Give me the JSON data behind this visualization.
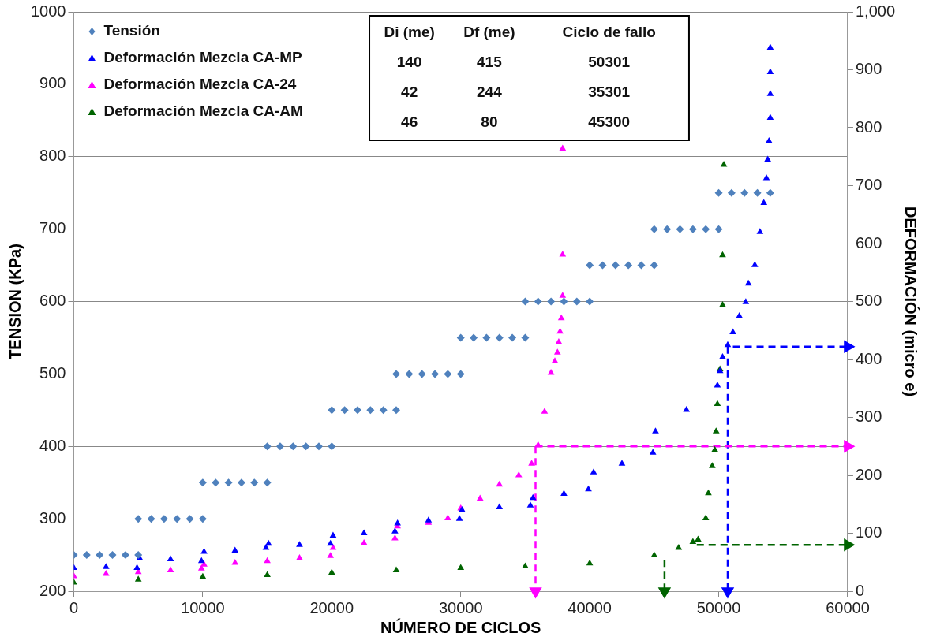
{
  "chart_data": {
    "type": "scatter",
    "xlabel": "NÚMERO DE CICLOS",
    "ylabel": "TENSION (KPa)",
    "y2label": "DEFORMACIÓN (micro e)",
    "xlim": [
      0,
      60000
    ],
    "xticks": [
      0,
      10000,
      20000,
      30000,
      40000,
      50000,
      60000
    ],
    "ylim": [
      200,
      1000
    ],
    "yticks": [
      200,
      300,
      400,
      500,
      600,
      700,
      800,
      900,
      1000
    ],
    "y2lim": [
      0,
      1000
    ],
    "y2ticks": [
      0,
      100,
      200,
      300,
      400,
      500,
      600,
      700,
      800,
      900,
      {
        "value": 1000,
        "label": "1,000"
      }
    ],
    "grid": "y",
    "legend": "top left",
    "annotations": [
      "Di (me)",
      "Df (me)",
      "Ciclo de fallo",
      "140",
      "415",
      "50301",
      "42",
      "244",
      "35301",
      "46",
      "80",
      "45300"
    ],
    "series": [
      {
        "name": "Tensión",
        "marker": "diamond",
        "color": "#4f81bd",
        "x": [
          0,
          1000,
          2000,
          3000,
          4000,
          5000,
          5000,
          6000,
          7000,
          8000,
          9000,
          10000,
          10000,
          11000,
          12000,
          13000,
          14000,
          15000,
          15000,
          16000,
          17000,
          18000,
          19000,
          20000,
          20000,
          21000,
          22000,
          23000,
          24000,
          25000,
          25000,
          26000,
          27000,
          28000,
          29000,
          30000,
          30000,
          31000,
          32000,
          33000,
          34000,
          35000,
          35000,
          36000,
          37000,
          38000,
          39000,
          40000,
          40000,
          41000,
          42000,
          43000,
          44000,
          45000,
          45000,
          46000,
          47000,
          48000,
          49000,
          50000,
          50000,
          51000,
          52000,
          53000,
          54000
        ],
        "values": [
          250,
          250,
          250,
          250,
          250,
          250,
          300,
          300,
          300,
          300,
          300,
          300,
          350,
          350,
          350,
          350,
          350,
          350,
          400,
          400,
          400,
          400,
          400,
          400,
          450,
          450,
          450,
          450,
          450,
          450,
          500,
          500,
          500,
          500,
          500,
          500,
          550,
          550,
          550,
          550,
          550,
          550,
          600,
          600,
          600,
          600,
          600,
          600,
          650,
          650,
          650,
          650,
          650,
          650,
          700,
          700,
          700,
          700,
          700,
          700,
          750,
          750,
          750,
          750,
          750
        ]
      },
      {
        "name": "Deformación Mezcla CA-MP",
        "marker": "triangle",
        "axis": "y2",
        "color": "#0000ff",
        "x": [
          0,
          2500,
          4900,
          5100,
          7500,
          9900,
          10100,
          12500,
          14900,
          15100,
          17500,
          19900,
          20100,
          22500,
          24900,
          25100,
          27500,
          29900,
          30100,
          33000,
          35400,
          35600,
          38000,
          39900,
          40300,
          42500,
          44900,
          45100,
          47500,
          49900,
          50100,
          50300,
          50700,
          51100,
          51600,
          52100,
          52300,
          52800,
          53200,
          53500,
          53700,
          53800,
          53900,
          54000,
          54000,
          54000,
          54000
        ],
        "values": [
          40,
          42,
          40,
          57,
          55,
          52,
          68,
          70,
          75,
          82,
          80,
          82,
          96,
          100,
          103,
          117,
          122,
          125,
          140,
          145,
          148,
          161,
          168,
          176,
          205,
          220,
          239,
          276,
          313,
          355,
          380,
          404,
          425,
          447,
          475,
          499,
          531,
          563,
          620,
          670,
          713,
          745,
          777,
          817,
          858,
          896,
          938
        ]
      },
      {
        "name": "Deformación Mezcla CA-24",
        "marker": "triangle",
        "axis": "y2",
        "color": "#ff00ff",
        "x": [
          0,
          2500,
          5000,
          7500,
          9900,
          10100,
          12500,
          15000,
          17500,
          19900,
          20100,
          22500,
          24900,
          25100,
          27500,
          29000,
          30000,
          31500,
          33000,
          34500,
          35500,
          36000,
          36500,
          37000,
          37300,
          37500,
          37600,
          37700,
          37800,
          37900,
          37900,
          37900
        ],
        "values": [
          26,
          30,
          33,
          36,
          39,
          46,
          49,
          52,
          57,
          61,
          75,
          83,
          91,
          112,
          118,
          126,
          143,
          160,
          184,
          200,
          220,
          252,
          310,
          377,
          397,
          412,
          430,
          448,
          471,
          510,
          581,
          764
        ]
      },
      {
        "name": "Deformación Mezcla CA-AM",
        "marker": "triangle",
        "axis": "y2",
        "color": "#006400",
        "x": [
          0,
          5000,
          10000,
          15000,
          20000,
          25000,
          30000,
          35000,
          40000,
          45000,
          46900,
          48000,
          48400,
          49000,
          49200,
          49500,
          49700,
          49800,
          49900,
          50100,
          50300,
          50300,
          50400
        ],
        "values": [
          15,
          20,
          25,
          28,
          32,
          36,
          40,
          43,
          48,
          62,
          75,
          85,
          89,
          126,
          169,
          216,
          244,
          276,
          323,
          383,
          494,
          580,
          736
        ]
      },
      {
        "type": "line",
        "line_style": "dashed",
        "axis": "y2",
        "color": "#ff00ff",
        "x": [
          35800,
          60000
        ],
        "values": [
          250,
          250
        ]
      },
      {
        "type": "line",
        "line_style": "dashed",
        "axis": "y2",
        "color": "#ff00ff",
        "x": [
          35800,
          35800
        ],
        "values": [
          250,
          0
        ]
      },
      {
        "type": "line",
        "line_style": "dashed",
        "axis": "y2",
        "color": "#0000ff",
        "x": [
          51100,
          60000
        ],
        "values": [
          422,
          422
        ]
      },
      {
        "type": "line",
        "line_style": "dashed",
        "axis": "y2",
        "color": "#0000ff",
        "x": [
          50700,
          50700
        ],
        "values": [
          422,
          0
        ]
      },
      {
        "type": "line",
        "line_style": "dashed",
        "axis": "y2",
        "color": "#006400",
        "x": [
          48300,
          60000
        ],
        "values": [
          80,
          80
        ]
      },
      {
        "type": "line",
        "line_style": "dashed",
        "axis": "y2",
        "color": "#006400",
        "x": [
          45800,
          45800
        ],
        "values": [
          54,
          0
        ]
      }
    ]
  }
}
